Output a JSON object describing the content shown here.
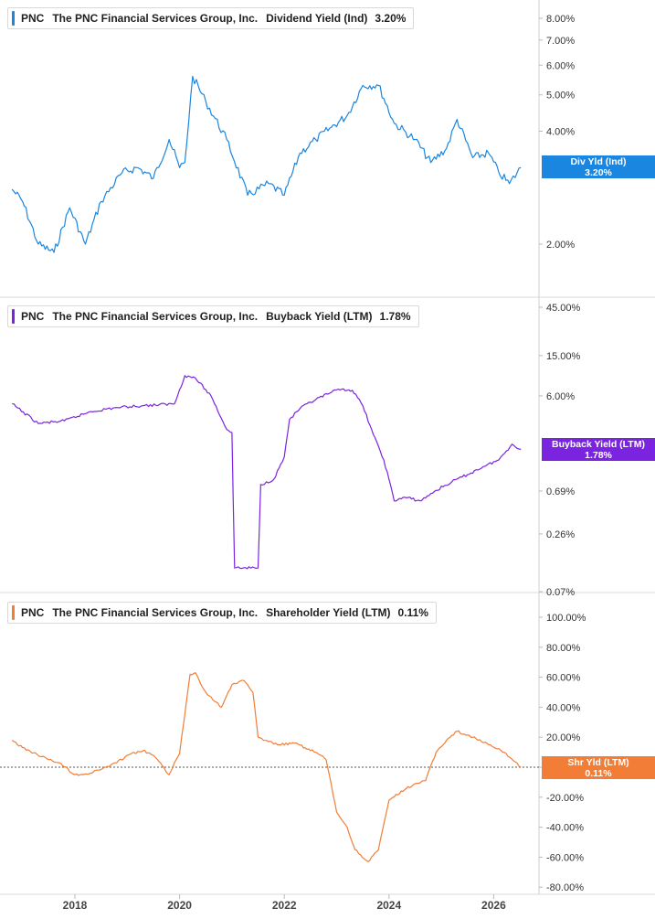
{
  "chart_data": [
    {
      "type": "line",
      "ticker": "PNC",
      "company": "The PNC Financial Services Group, Inc.",
      "metric": "Dividend Yield (Ind)",
      "current": "3.20%",
      "tag_label": "Div Yld (Ind)",
      "tag_value": "3.20%",
      "color": "#1a86e0",
      "scale": "log",
      "y_ticks": [
        "8.00%",
        "7.00%",
        "6.00%",
        "5.00%",
        "4.00%",
        "2.00%"
      ],
      "x": [
        2016.8,
        2017.0,
        2017.3,
        2017.6,
        2017.9,
        2018.2,
        2018.5,
        2018.9,
        2019.2,
        2019.5,
        2019.8,
        2020.0,
        2020.1,
        2020.25,
        2020.5,
        2020.9,
        2021.3,
        2021.7,
        2022.0,
        2022.3,
        2022.6,
        2022.9,
        2023.2,
        2023.5,
        2023.8,
        2024.1,
        2024.5,
        2024.8,
        2025.1,
        2025.3,
        2025.6,
        2025.9,
        2026.1,
        2026.3,
        2026.52
      ],
      "values": [
        2.8,
        2.6,
        2.0,
        1.9,
        2.5,
        2.0,
        2.6,
        3.1,
        3.2,
        3.0,
        3.8,
        3.2,
        3.3,
        5.6,
        4.8,
        3.8,
        2.7,
        2.9,
        2.7,
        3.5,
        3.8,
        4.1,
        4.4,
        5.3,
        5.3,
        4.2,
        3.8,
        3.3,
        3.6,
        4.3,
        3.4,
        3.5,
        3.1,
        2.9,
        3.2
      ]
    },
    {
      "type": "line",
      "ticker": "PNC",
      "company": "The PNC Financial Services Group, Inc.",
      "metric": "Buyback Yield (LTM)",
      "current": "1.78%",
      "tag_label": "Buyback Yield (LTM)",
      "tag_value": "1.78%",
      "color": "#7b24e0",
      "scale": "log",
      "y_ticks": [
        "45.00%",
        "15.00%",
        "6.00%",
        "0.69%",
        "0.26%",
        "0.07%"
      ],
      "x": [
        2016.8,
        2017.3,
        2017.8,
        2018.3,
        2018.8,
        2019.3,
        2019.9,
        2020.1,
        2020.3,
        2020.6,
        2020.9,
        2021.0,
        2021.05,
        2021.5,
        2021.55,
        2021.8,
        2022.0,
        2022.1,
        2022.3,
        2022.6,
        2022.9,
        2023.1,
        2023.3,
        2023.5,
        2023.7,
        2023.9,
        2024.0,
        2024.1,
        2024.3,
        2024.6,
        2024.9,
        2025.2,
        2025.5,
        2025.8,
        2026.1,
        2026.35,
        2026.52
      ],
      "values": [
        5.0,
        3.2,
        3.4,
        4.2,
        4.6,
        4.8,
        5.0,
        9.5,
        9.0,
        6.0,
        2.8,
        2.6,
        0.12,
        0.12,
        0.8,
        0.9,
        1.5,
        3.5,
        4.5,
        5.5,
        6.5,
        7.0,
        6.8,
        4.8,
        2.5,
        1.4,
        0.9,
        0.55,
        0.6,
        0.55,
        0.7,
        0.85,
        1.0,
        1.2,
        1.4,
        2.0,
        1.78
      ]
    },
    {
      "type": "line",
      "ticker": "PNC",
      "company": "The PNC Financial Services Group, Inc.",
      "metric": "Shareholder Yield (LTM)",
      "current": "0.11%",
      "tag_label": "Shr Yld (LTM)",
      "tag_value": "0.11%",
      "color": "#f27d36",
      "scale": "linear",
      "ylim": [
        -80,
        100
      ],
      "y_ticks": [
        "100.00%",
        "80.00%",
        "60.00%",
        "40.00%",
        "20.00%",
        "0.00%",
        "-20.00%",
        "-40.00%",
        "-60.00%",
        "-80.00%"
      ],
      "x": [
        2016.8,
        2017.0,
        2017.5,
        2017.7,
        2018.0,
        2018.3,
        2018.8,
        2019.0,
        2019.3,
        2019.5,
        2019.8,
        2019.9,
        2020.0,
        2020.2,
        2020.3,
        2020.5,
        2020.8,
        2021.0,
        2021.2,
        2021.3,
        2021.4,
        2021.5,
        2021.6,
        2021.7,
        2021.9,
        2022.2,
        2022.4,
        2022.6,
        2022.8,
        2023.0,
        2023.2,
        2023.35,
        2023.6,
        2023.8,
        2024.0,
        2024.3,
        2024.5,
        2024.7,
        2024.9,
        2025.1,
        2025.3,
        2025.6,
        2025.9,
        2026.2,
        2026.52
      ],
      "values": [
        18,
        13,
        5,
        3,
        -5,
        -4,
        3,
        8,
        11,
        8,
        -5,
        3,
        9,
        62,
        63,
        50,
        40,
        55,
        58,
        55,
        50,
        20,
        18,
        17,
        15,
        16,
        13,
        10,
        5,
        -30,
        -40,
        -55,
        -63,
        -55,
        -22,
        -15,
        -11,
        -9,
        10,
        18,
        24,
        20,
        15,
        10,
        0.11
      ]
    }
  ],
  "x_axis_labels": [
    "2018",
    "2020",
    "2022",
    "2024",
    "2026"
  ],
  "x_axis_years": [
    2018,
    2020,
    2022,
    2024,
    2026
  ]
}
